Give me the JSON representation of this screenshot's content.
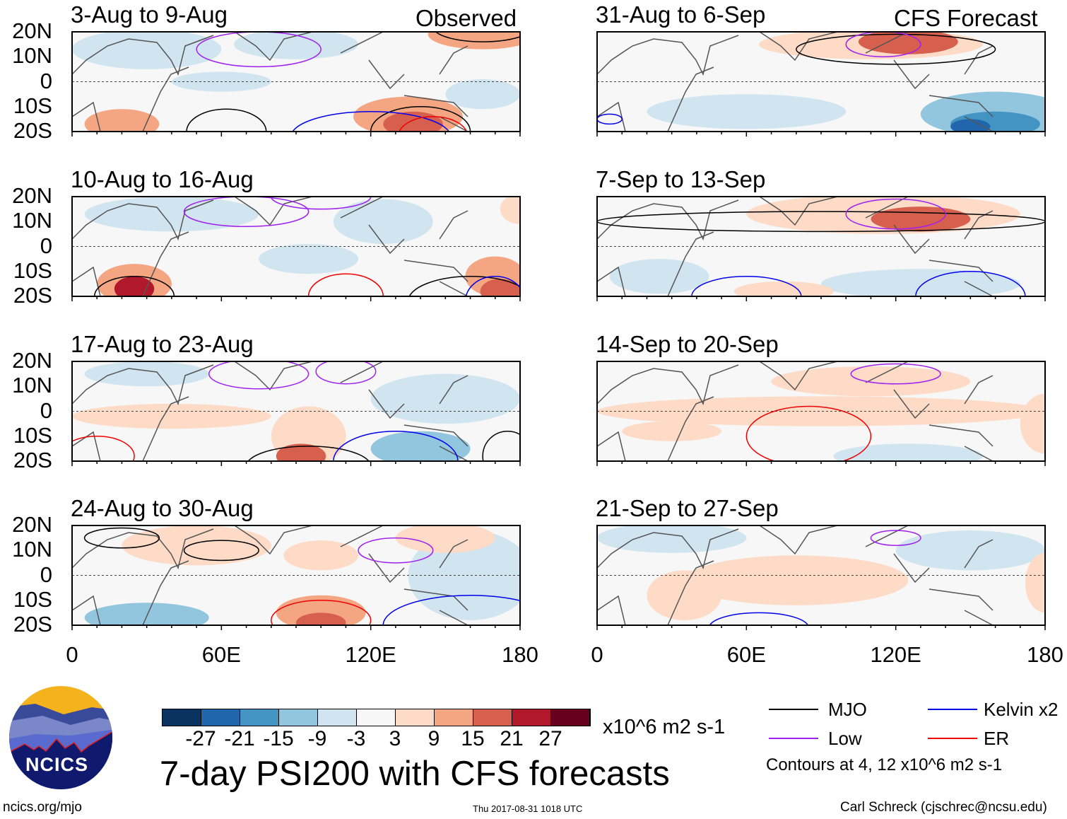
{
  "title": "7-day PSI200 with CFS forecasts",
  "observed_label": "Observed",
  "forecast_label": "CFS Forecast",
  "panels_left": [
    "3-Aug to 9-Aug",
    "10-Aug to 16-Aug",
    "17-Aug to 23-Aug",
    "24-Aug to 30-Aug"
  ],
  "panels_right": [
    "31-Aug to 6-Sep",
    "7-Sep to 13-Sep",
    "14-Sep to 20-Sep",
    "21-Sep to 27-Sep"
  ],
  "lat_labels": [
    "20N",
    "10N",
    "0",
    "10S",
    "20S"
  ],
  "lon_labels": [
    "0",
    "60E",
    "120E",
    "180"
  ],
  "colorbar": {
    "colors": [
      "#0a3362",
      "#2166ac",
      "#4393c3",
      "#92c5de",
      "#d1e5f0",
      "#f7f7f7",
      "#fddbc7",
      "#f4a582",
      "#d6604d",
      "#b2182b",
      "#67001f"
    ],
    "labels": [
      "-27",
      "-21",
      "-15",
      "-9",
      "-3",
      "3",
      "9",
      "15",
      "21",
      "27"
    ],
    "units": "x10^6 m2 s-1"
  },
  "legend": {
    "items": [
      {
        "label": "MJO",
        "color": "#000000"
      },
      {
        "label": "Kelvin x2",
        "color": "#0000ee"
      },
      {
        "label": "Low",
        "color": "#a020f0"
      },
      {
        "label": "ER",
        "color": "#ee0000"
      }
    ],
    "note": "Contours at 4, 12 x10^6 m2 s-1"
  },
  "logo_text": "NCICS",
  "site": "ncics.org/mjo",
  "timestamp": "Thu 2017-08-31 1018 UTC",
  "author": "Carl Schreck (cjschrec@ncsu.edu)"
}
